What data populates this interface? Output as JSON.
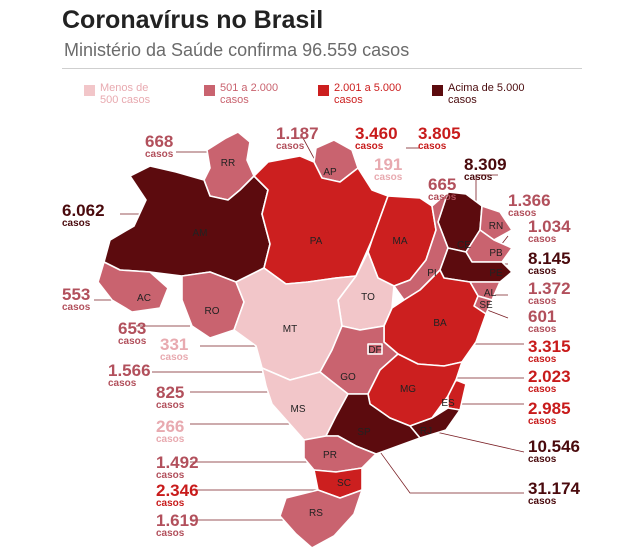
{
  "title": "Coronavírus no Brasil",
  "subtitle": "Ministério da Saúde confirma 96.559 casos",
  "legend": [
    {
      "label": "Menos de 500 casos",
      "line1": "Menos de",
      "line2": "500 casos",
      "color": "#f2c6c9"
    },
    {
      "label": "501 a 2.000 casos",
      "line1": "501 a 2.000",
      "line2": "casos",
      "color": "#c9636f"
    },
    {
      "label": "2.001 a 5.000 casos",
      "line1": "2.001 a 5.000",
      "line2": "casos",
      "color": "#cc1f1f"
    },
    {
      "label": "Acima de 5.000 casos",
      "line1": "Acima de 5.000",
      "line2": "casos",
      "color": "#5c0b0e"
    }
  ],
  "unit": "casos",
  "states": {
    "RR": {
      "abbr": "RR",
      "cases": "668",
      "tier": 1
    },
    "AP": {
      "abbr": "AP",
      "cases": "1.187",
      "tier": 1
    },
    "AM": {
      "abbr": "AM",
      "cases": "6.062",
      "tier": 3
    },
    "PA": {
      "abbr": "PA",
      "cases": "3.460",
      "tier": 2
    },
    "MA": {
      "abbr": "MA",
      "cases": "3.805",
      "tier": 2
    },
    "TO": {
      "abbr": "TO",
      "cases": "191",
      "tier": 0
    },
    "CE": {
      "abbr": "CE",
      "cases": "8.309",
      "tier": 3
    },
    "PI": {
      "abbr": "PI",
      "cases": "665",
      "tier": 1
    },
    "RN": {
      "abbr": "RN",
      "cases": "1.366",
      "tier": 1
    },
    "PB": {
      "abbr": "PB",
      "cases": "1.034",
      "tier": 1
    },
    "PE": {
      "abbr": "PE",
      "cases": "8.145",
      "tier": 3
    },
    "AL": {
      "abbr": "AL",
      "cases": "1.372",
      "tier": 1
    },
    "SE": {
      "abbr": "SE",
      "cases": "601",
      "tier": 1
    },
    "AC": {
      "abbr": "AC",
      "cases": "553",
      "tier": 1
    },
    "RO": {
      "abbr": "RO",
      "cases": "653",
      "tier": 1
    },
    "MT": {
      "abbr": "MT",
      "cases": "331",
      "tier": 0
    },
    "BA": {
      "abbr": "BA",
      "cases": "3.315",
      "tier": 2
    },
    "DF": {
      "abbr": "DF",
      "cases": "1.566",
      "tier": 1
    },
    "GO": {
      "abbr": "GO",
      "cases": "825",
      "tier": 1
    },
    "MG": {
      "abbr": "MG",
      "cases": "2.023",
      "tier": 2
    },
    "MS": {
      "abbr": "MS",
      "cases": "266",
      "tier": 0
    },
    "ES": {
      "abbr": "ES",
      "cases": "2.985",
      "tier": 2
    },
    "SP": {
      "abbr": "SP",
      "cases": "31.174",
      "tier": 3
    },
    "RJ": {
      "abbr": "RJ",
      "cases": "10.546",
      "tier": 3
    },
    "PR": {
      "abbr": "PR",
      "cases": "1.492",
      "tier": 1
    },
    "SC": {
      "abbr": "SC",
      "cases": "2.346",
      "tier": 2
    },
    "RS": {
      "abbr": "RS",
      "cases": "1.619",
      "tier": 1
    }
  }
}
